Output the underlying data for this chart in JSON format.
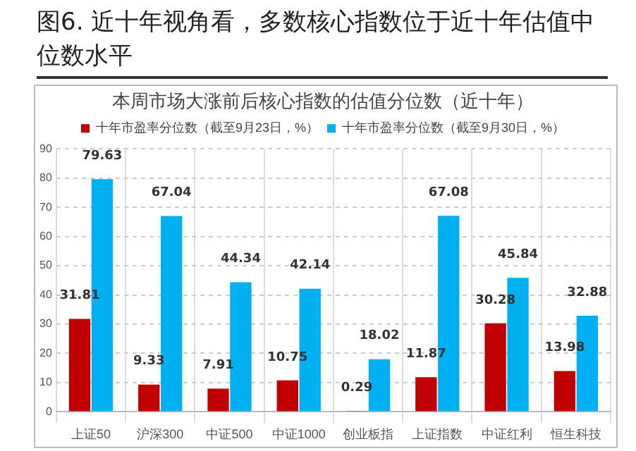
{
  "chart_data": {
    "type": "bar",
    "title": "图6. 近十年视角看，多数核心指数位于近十年估值中位数水平",
    "subtitle": "本周市场大涨前后核心指数的估值分位数（近十年）",
    "categories": [
      "上证50",
      "沪深300",
      "中证500",
      "中证1000",
      "创业板指",
      "上证指数",
      "中证红利",
      "恒生科技"
    ],
    "series": [
      {
        "name": "十年市盈率分位数（截至9月23日，%）",
        "color": "#c00000",
        "values": [
          31.81,
          9.33,
          7.91,
          10.75,
          0.29,
          11.87,
          30.28,
          13.98
        ]
      },
      {
        "name": "十年市盈率分位数（截至9月30日，%）",
        "color": "#00b0f0",
        "values": [
          79.63,
          67.04,
          44.34,
          42.14,
          18.02,
          67.08,
          45.84,
          32.88
        ]
      }
    ],
    "ylim": [
      0,
      90
    ],
    "yticks": [
      0,
      10,
      20,
      30,
      40,
      50,
      60,
      70,
      80,
      90
    ],
    "grid": true,
    "legend": "top",
    "data_labels": true
  }
}
